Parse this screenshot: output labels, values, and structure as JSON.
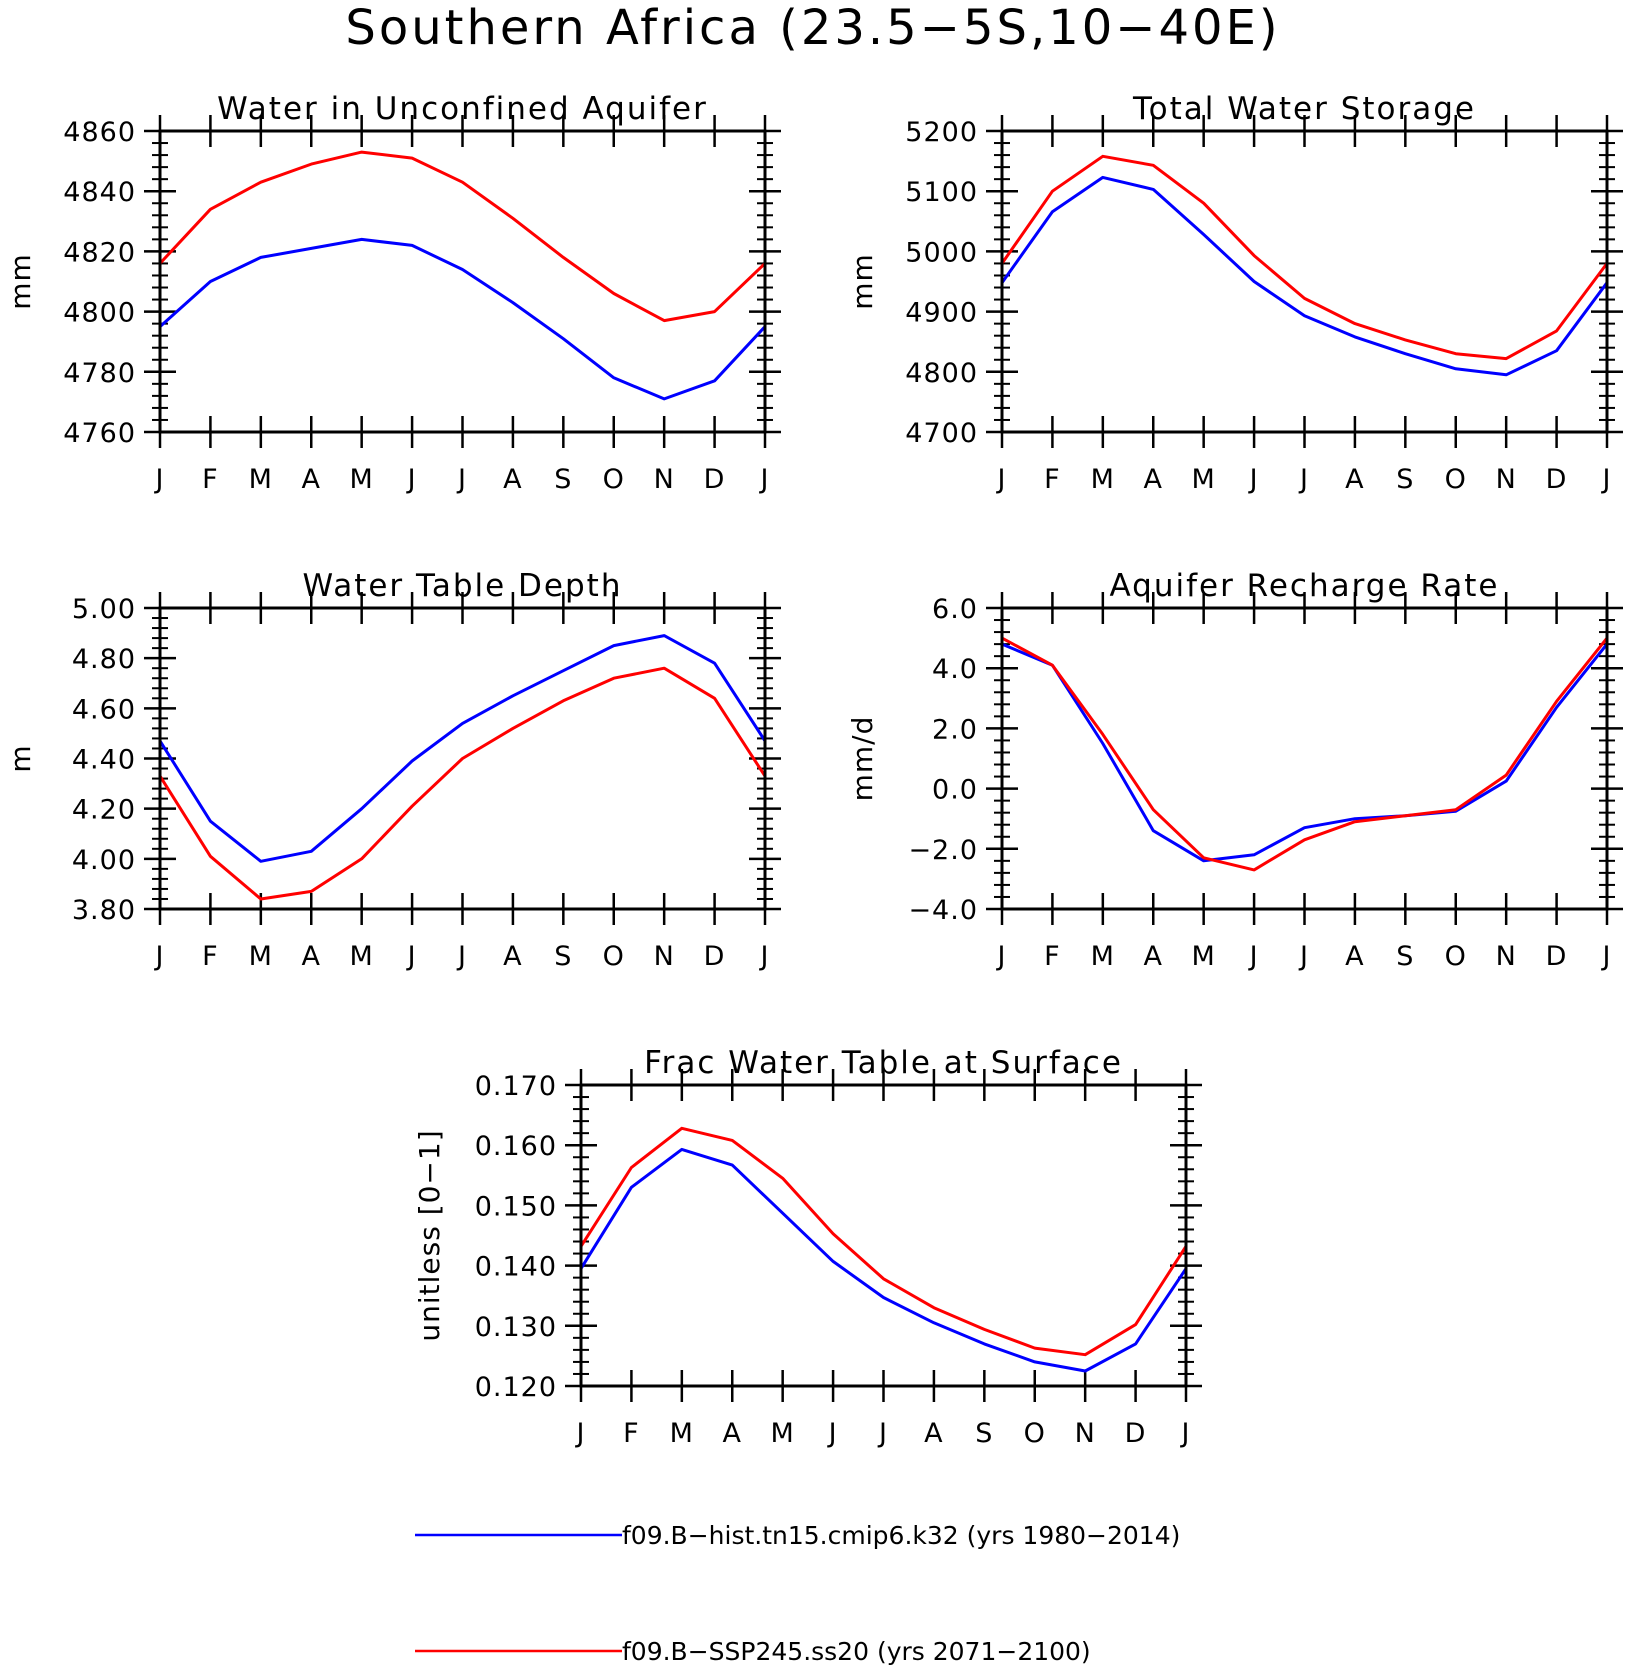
{
  "title": "Southern Africa (23.5−5S,10−40E)",
  "months": [
    "J",
    "F",
    "M",
    "A",
    "M",
    "J",
    "J",
    "A",
    "S",
    "O",
    "N",
    "D",
    "J"
  ],
  "legend": [
    {
      "label": "f09.B−hist.tn15.cmip6.k32 (yrs 1980−2014)",
      "color": "#0000ff"
    },
    {
      "label": "f09.B−SSP245.ss20 (yrs 2071−2100)",
      "color": "#ff0000"
    }
  ],
  "chart_data": [
    {
      "type": "line",
      "title": "Water in Unconfined Aquifer",
      "ylabel": "mm",
      "ylim": [
        4760,
        4860
      ],
      "yticks": [
        4760,
        4780,
        4800,
        4820,
        4840,
        4860
      ],
      "ytick_labels": [
        "4760",
        "4780",
        "4800",
        "4820",
        "4840",
        "4860"
      ],
      "series": [
        {
          "color": "#0000ff",
          "values": [
            4795,
            4810,
            4818,
            4821,
            4824,
            4822,
            4814,
            4803,
            4791,
            4778,
            4771,
            4777,
            4795
          ]
        },
        {
          "color": "#ff0000",
          "values": [
            4816,
            4834,
            4843,
            4849,
            4853,
            4851,
            4843,
            4831,
            4818,
            4806,
            4797,
            4800,
            4816
          ]
        }
      ]
    },
    {
      "type": "line",
      "title": "Total Water Storage",
      "ylabel": "mm",
      "ylim": [
        4700,
        5200
      ],
      "yticks": [
        4700,
        4800,
        4900,
        5000,
        5100,
        5200
      ],
      "ytick_labels": [
        "4700",
        "4800",
        "4900",
        "5000",
        "5100",
        "5200"
      ],
      "series": [
        {
          "color": "#0000ff",
          "values": [
            4948,
            5066,
            5123,
            5103,
            5028,
            4950,
            4893,
            4858,
            4830,
            4805,
            4795,
            4835,
            4948
          ]
        },
        {
          "color": "#ff0000",
          "values": [
            4980,
            5100,
            5158,
            5143,
            5080,
            4993,
            4922,
            4880,
            4853,
            4830,
            4822,
            4868,
            4980
          ]
        }
      ]
    },
    {
      "type": "line",
      "title": "Water Table Depth",
      "ylabel": "m",
      "ylim": [
        3.8,
        5.0
      ],
      "yticks": [
        3.8,
        4.0,
        4.2,
        4.4,
        4.6,
        4.8,
        5.0
      ],
      "ytick_labels": [
        "3.80",
        "4.00",
        "4.20",
        "4.40",
        "4.60",
        "4.80",
        "5.00"
      ],
      "series": [
        {
          "color": "#0000ff",
          "values": [
            4.47,
            4.15,
            3.99,
            4.03,
            4.2,
            4.39,
            4.54,
            4.65,
            4.75,
            4.85,
            4.89,
            4.78,
            4.47
          ]
        },
        {
          "color": "#ff0000",
          "values": [
            4.33,
            4.01,
            3.84,
            3.87,
            4.0,
            4.21,
            4.4,
            4.52,
            4.63,
            4.72,
            4.76,
            4.64,
            4.33
          ]
        }
      ]
    },
    {
      "type": "line",
      "title": "Aquifer Recharge Rate",
      "ylabel": "mm/d",
      "ylim": [
        -4.0,
        6.0
      ],
      "yticks": [
        -4,
        -2,
        0,
        2,
        4,
        6
      ],
      "ytick_labels": [
        "−4.0",
        "−2.0",
        "0.0",
        "2.0",
        "4.0",
        "6.0"
      ],
      "series": [
        {
          "color": "#0000ff",
          "values": [
            4.8,
            4.1,
            1.5,
            -1.4,
            -2.4,
            -2.2,
            -1.3,
            -1.0,
            -0.9,
            -0.75,
            0.25,
            2.7,
            4.8
          ]
        },
        {
          "color": "#ff0000",
          "values": [
            5.0,
            4.1,
            1.8,
            -0.7,
            -2.3,
            -2.7,
            -1.7,
            -1.1,
            -0.9,
            -0.7,
            0.45,
            2.9,
            5.0
          ]
        }
      ]
    },
    {
      "type": "line",
      "title": "Frac Water Table at Surface",
      "ylabel": "unitless [0−1]",
      "ylim": [
        0.12,
        0.17
      ],
      "yticks": [
        0.12,
        0.13,
        0.14,
        0.15,
        0.16,
        0.17
      ],
      "ytick_labels": [
        "0.120",
        "0.130",
        "0.140",
        "0.150",
        "0.160",
        "0.170"
      ],
      "series": [
        {
          "color": "#0000ff",
          "values": [
            0.1395,
            0.153,
            0.1593,
            0.1567,
            0.1487,
            0.1407,
            0.1347,
            0.1305,
            0.127,
            0.124,
            0.1225,
            0.127,
            0.1395
          ]
        },
        {
          "color": "#ff0000",
          "values": [
            0.1432,
            0.1563,
            0.1628,
            0.1608,
            0.1545,
            0.1453,
            0.1378,
            0.133,
            0.1294,
            0.1263,
            0.1252,
            0.1302,
            0.1432
          ]
        }
      ]
    }
  ]
}
